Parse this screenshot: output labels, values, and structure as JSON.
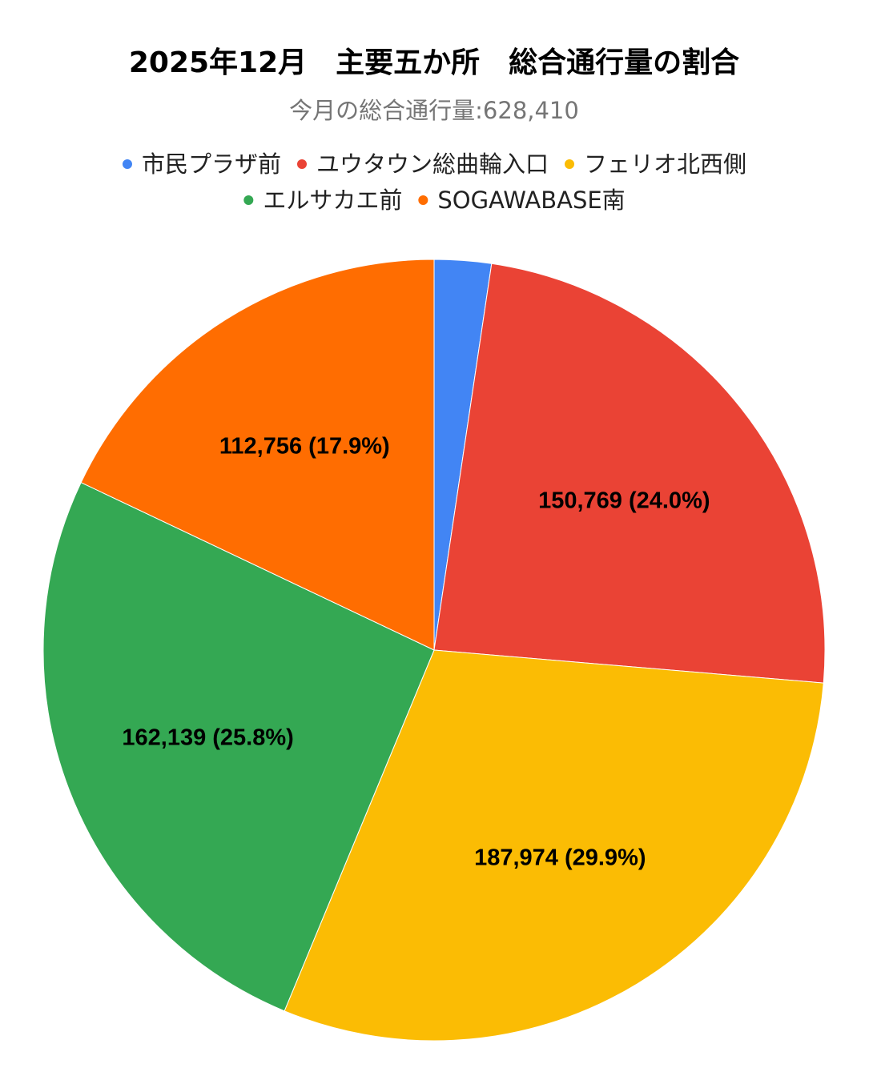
{
  "chart_data": {
    "type": "pie",
    "title": "2025年12月　主要五か所　総合通行量の割合",
    "subtitle": "今月の総合通行量:628,410",
    "legend_position": "top",
    "slices": [
      {
        "name": "市民プラザ前",
        "value": 14772,
        "percent_label": "",
        "color": "#4285F4"
      },
      {
        "name": "ユウタウン総曲輪入口",
        "value": 150769,
        "percent_label": "24.0%",
        "color": "#EA4335"
      },
      {
        "name": "フェリオ北西側",
        "value": 187974,
        "percent_label": "29.9%",
        "color": "#FBBC04"
      },
      {
        "name": "エルサカエ前",
        "value": 162139,
        "percent_label": "25.8%",
        "color": "#34A853"
      },
      {
        "name": "SOGAWABASE南",
        "value": 112756,
        "percent_label": "17.9%",
        "color": "#FF6D01"
      }
    ],
    "slice_labels": [
      "",
      "150,769 (24.0%)",
      "187,974 (29.9%)",
      "162,139 (25.8%)",
      "112,756 (17.9%)"
    ]
  }
}
